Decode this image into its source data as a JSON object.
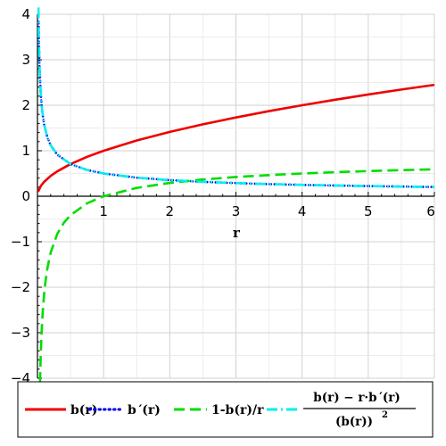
{
  "chart_data": {
    "type": "line",
    "xlabel": "r",
    "ylabel": "",
    "xlim": [
      0,
      6
    ],
    "ylim": [
      -4,
      4
    ],
    "grid": true,
    "legend_position": "bottom",
    "x_ticks": [
      "1",
      "2",
      "3",
      "4",
      "5",
      "6"
    ],
    "y_ticks": [
      "4",
      "3",
      "2",
      "1",
      "0",
      "−1",
      "−2",
      "−3",
      "−4"
    ],
    "series": [
      {
        "name": "b(r)",
        "color": "#ee0000",
        "style": "solid",
        "x": [
          0.01,
          0.05,
          0.1,
          0.2,
          0.3,
          0.5,
          0.75,
          1,
          1.5,
          2,
          2.5,
          3,
          3.5,
          4,
          4.5,
          5,
          5.5,
          6
        ],
        "y": [
          0.1,
          0.224,
          0.316,
          0.447,
          0.548,
          0.707,
          0.866,
          1.0,
          1.225,
          1.414,
          1.581,
          1.732,
          1.871,
          2.0,
          2.121,
          2.236,
          2.345,
          2.449
        ]
      },
      {
        "name": "b ′(r)",
        "color": "#0000ee",
        "style": "dotted",
        "x": [
          0.017,
          0.02,
          0.03,
          0.05,
          0.07,
          0.1,
          0.15,
          0.2,
          0.3,
          0.5,
          0.75,
          1,
          1.5,
          2,
          2.5,
          3,
          3.5,
          4,
          4.5,
          5,
          5.5,
          6
        ],
        "y": [
          3.83,
          3.536,
          2.887,
          2.236,
          1.89,
          1.581,
          1.291,
          1.118,
          0.913,
          0.707,
          0.577,
          0.5,
          0.408,
          0.354,
          0.316,
          0.289,
          0.267,
          0.25,
          0.236,
          0.224,
          0.213,
          0.204
        ]
      },
      {
        "name": "1-b(r)/r",
        "color": "#00dd00",
        "style": "dashed",
        "x": [
          0.0385,
          0.045,
          0.05,
          0.06,
          0.07,
          0.08,
          0.1,
          0.12,
          0.15,
          0.2,
          0.3,
          0.4,
          0.5,
          0.75,
          1,
          1.5,
          2,
          2.5,
          3,
          3.5,
          4,
          4.5,
          5,
          5.5,
          6
        ],
        "y": [
          -4.1,
          -3.714,
          -3.472,
          -3.082,
          -2.78,
          -2.536,
          -2.162,
          -1.887,
          -1.582,
          -1.236,
          -0.826,
          -0.581,
          -0.414,
          -0.155,
          0.0,
          0.184,
          0.293,
          0.368,
          0.423,
          0.465,
          0.5,
          0.529,
          0.553,
          0.574,
          0.592
        ]
      },
      {
        "name": "(b(r) − r·b ′(r)) / (b(r))²",
        "color": "#00eeee",
        "style": "dashdot",
        "x": [
          0.0145,
          0.02,
          0.03,
          0.05,
          0.07,
          0.1,
          0.15,
          0.2,
          0.3,
          0.5,
          0.75,
          1,
          1.5,
          2,
          2.5,
          3,
          3.5,
          4,
          4.5,
          5,
          5.5,
          6
        ],
        "y": [
          4.15,
          3.536,
          2.887,
          2.236,
          1.89,
          1.581,
          1.291,
          1.118,
          0.913,
          0.707,
          0.577,
          0.5,
          0.408,
          0.354,
          0.316,
          0.289,
          0.267,
          0.25,
          0.236,
          0.224,
          0.213,
          0.204
        ]
      }
    ],
    "legend": {
      "items": [
        "b(r)",
        "b ′(r)",
        "1-b(r)/r"
      ],
      "fraction_numerator": "b(r) − r·b ′(r)",
      "fraction_denominator": "(b(r))",
      "fraction_exponent": "2"
    }
  }
}
